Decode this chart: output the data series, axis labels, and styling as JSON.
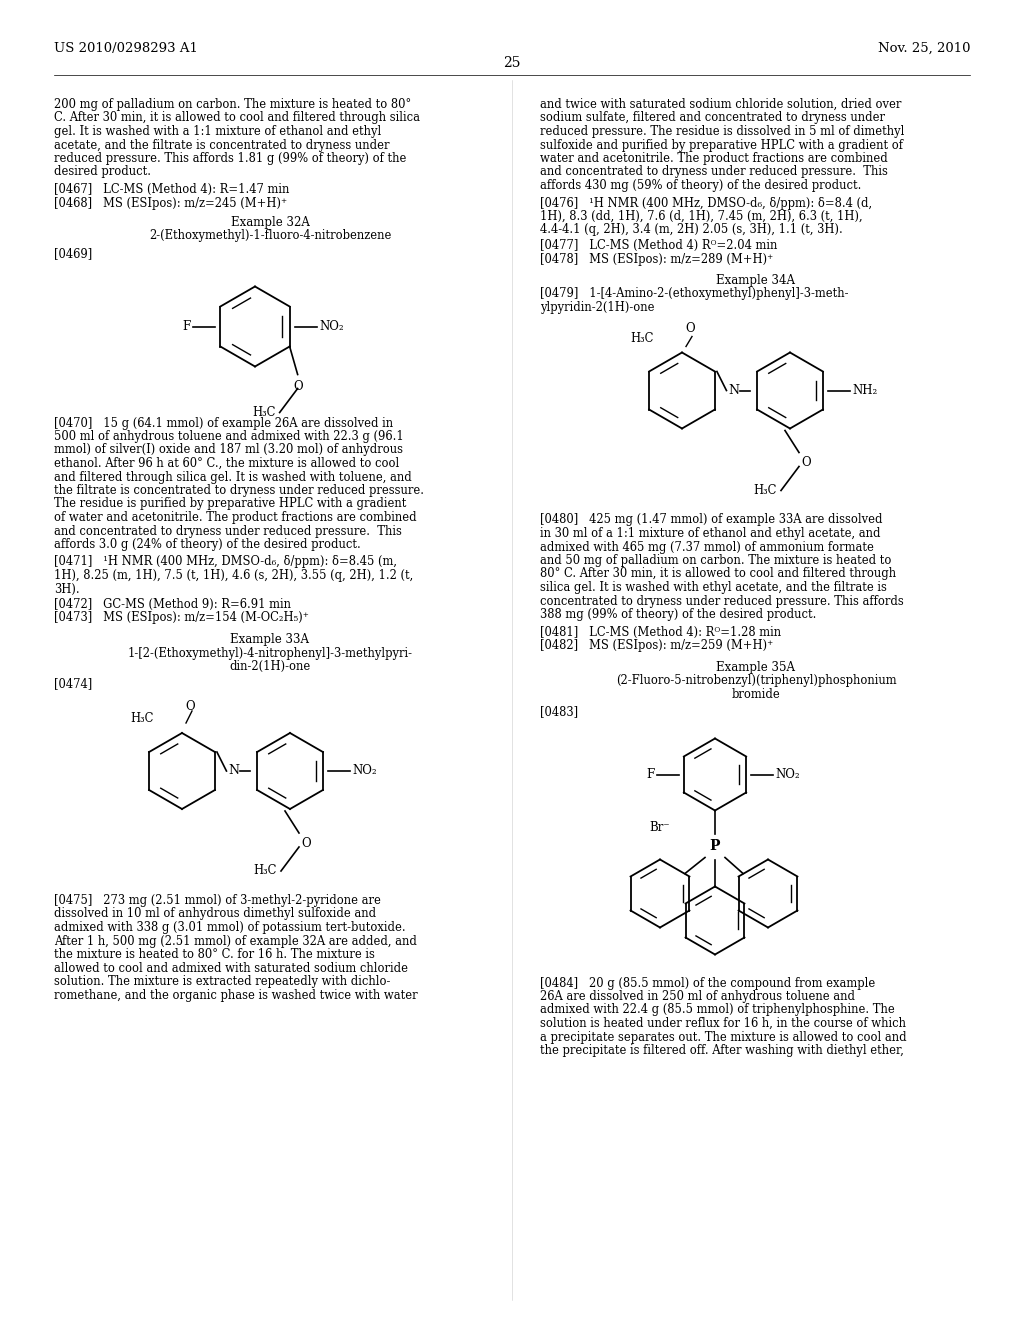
{
  "page_number": "25",
  "header_left": "US 2010/0298293 A1",
  "header_right": "Nov. 25, 2010",
  "background_color": "#ffffff"
}
